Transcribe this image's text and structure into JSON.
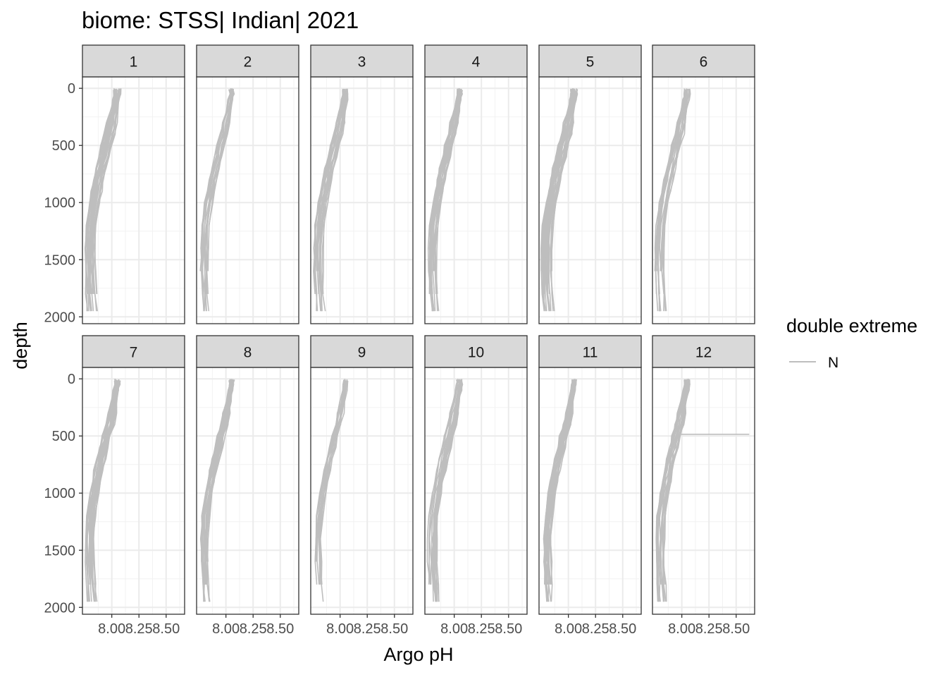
{
  "chart_data": {
    "type": "line",
    "title": "biome: STSS| Indian| 2021",
    "xlabel": "Argo pH",
    "ylabel": "depth",
    "x_ticks": [
      8.0,
      8.25,
      8.5
    ],
    "x_tick_labels": [
      "8.00",
      "8.25",
      "8.50"
    ],
    "y_ticks": [
      0,
      500,
      1000,
      1500,
      2000
    ],
    "y_tick_labels": [
      "0",
      "500",
      "1000",
      "1500",
      "2000"
    ],
    "xlim": [
      7.73,
      8.67
    ],
    "ylim": [
      2060,
      -100
    ],
    "y_reversed": true,
    "grid": true,
    "facets": [
      "1",
      "2",
      "3",
      "4",
      "5",
      "6",
      "7",
      "8",
      "9",
      "10",
      "11",
      "12"
    ],
    "facet_layout": {
      "rows": 2,
      "cols": 6
    },
    "legend": {
      "title": "double extreme",
      "entries": [
        "N"
      ],
      "placement": "right"
    },
    "series_color": "#bebebe",
    "profile_depths": [
      0,
      50,
      100,
      200,
      300,
      400,
      500,
      600,
      700,
      800,
      900,
      1000,
      1200,
      1400,
      1600,
      1800,
      1950
    ],
    "mean_ph": [
      8.05,
      8.05,
      8.04,
      8.02,
      8.0,
      7.98,
      7.95,
      7.93,
      7.9,
      7.88,
      7.86,
      7.84,
      7.81,
      7.8,
      7.8,
      7.81,
      7.82
    ],
    "panels": [
      {
        "facet": "1",
        "spread": 0.045,
        "profiles": 26
      },
      {
        "facet": "2",
        "spread": 0.035,
        "profiles": 16
      },
      {
        "facet": "3",
        "spread": 0.04,
        "profiles": 20
      },
      {
        "facet": "4",
        "spread": 0.04,
        "profiles": 24
      },
      {
        "facet": "5",
        "spread": 0.05,
        "profiles": 30
      },
      {
        "facet": "6",
        "spread": 0.04,
        "profiles": 20
      },
      {
        "facet": "7",
        "spread": 0.04,
        "profiles": 24
      },
      {
        "facet": "8",
        "spread": 0.035,
        "profiles": 22
      },
      {
        "facet": "9",
        "spread": 0.03,
        "profiles": 12
      },
      {
        "facet": "10",
        "spread": 0.04,
        "profiles": 22
      },
      {
        "facet": "11",
        "spread": 0.04,
        "profiles": 24
      },
      {
        "facet": "12",
        "spread": 0.04,
        "profiles": 20,
        "spike": {
          "depth": 485,
          "x_start": 7.99,
          "x_end": 8.62
        }
      }
    ]
  }
}
